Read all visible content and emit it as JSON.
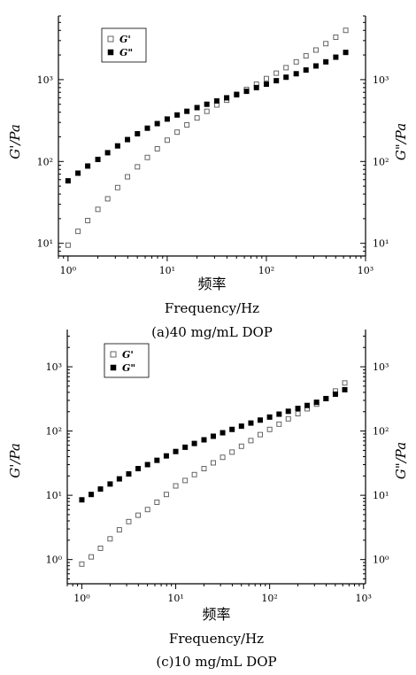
{
  "chart_data": [
    {
      "type": "scatter",
      "caption": "(a)40 mg/mL DOP",
      "xlabel_cn": "频率",
      "xlabel_en": "Frequency/Hz",
      "ylabel_left": "G'/Pa",
      "ylabel_right": "G\"/Pa",
      "x_scale": "log",
      "y_scale": "log",
      "xlim": [
        0.8,
        1000
      ],
      "ylim": [
        7,
        6000
      ],
      "x_tick_values": [
        1,
        10,
        100,
        1000
      ],
      "x_tick_labels": [
        "10⁰",
        "10¹",
        "10²",
        "10³"
      ],
      "y_tick_values": [
        10,
        100,
        1000
      ],
      "y_tick_labels": [
        "10¹",
        "10²",
        "10³"
      ],
      "legend": {
        "position": "top-left",
        "entries": [
          "G'",
          "G\""
        ]
      },
      "series": [
        {
          "name": "G'",
          "marker": "open-square",
          "points": [
            [
              1.0,
              9.5
            ],
            [
              1.26,
              14
            ],
            [
              1.58,
              19
            ],
            [
              2.0,
              26
            ],
            [
              2.51,
              35
            ],
            [
              3.16,
              48
            ],
            [
              3.98,
              65
            ],
            [
              5.01,
              86
            ],
            [
              6.31,
              112
            ],
            [
              7.94,
              143
            ],
            [
              10.0,
              182
            ],
            [
              12.6,
              228
            ],
            [
              15.8,
              280
            ],
            [
              20.0,
              340
            ],
            [
              25.1,
              410
            ],
            [
              31.6,
              490
            ],
            [
              39.8,
              560
            ],
            [
              50.1,
              650
            ],
            [
              63.1,
              760
            ],
            [
              79.4,
              880
            ],
            [
              100,
              1030
            ],
            [
              126,
              1200
            ],
            [
              158,
              1400
            ],
            [
              200,
              1650
            ],
            [
              251,
              1950
            ],
            [
              316,
              2300
            ],
            [
              398,
              2750
            ],
            [
              501,
              3300
            ],
            [
              631,
              4000
            ]
          ]
        },
        {
          "name": "G\"",
          "marker": "filled-square",
          "points": [
            [
              1.0,
              58
            ],
            [
              1.26,
              72
            ],
            [
              1.58,
              88
            ],
            [
              2.0,
              106
            ],
            [
              2.51,
              128
            ],
            [
              3.16,
              155
            ],
            [
              3.98,
              185
            ],
            [
              5.01,
              218
            ],
            [
              6.31,
              255
            ],
            [
              7.94,
              290
            ],
            [
              10.0,
              330
            ],
            [
              12.6,
              370
            ],
            [
              15.8,
              410
            ],
            [
              20.0,
              455
            ],
            [
              25.1,
              500
            ],
            [
              31.6,
              550
            ],
            [
              39.8,
              600
            ],
            [
              50.1,
              660
            ],
            [
              63.1,
              720
            ],
            [
              79.4,
              800
            ],
            [
              100,
              880
            ],
            [
              126,
              970
            ],
            [
              158,
              1070
            ],
            [
              200,
              1180
            ],
            [
              251,
              1310
            ],
            [
              316,
              1470
            ],
            [
              398,
              1650
            ],
            [
              501,
              1880
            ],
            [
              631,
              2150
            ]
          ]
        }
      ]
    },
    {
      "type": "scatter",
      "caption": "(c)10 mg/mL DOP",
      "xlabel_cn": "频率",
      "xlabel_en": "Frequency/Hz",
      "ylabel_left": "G'/Pa",
      "ylabel_right": "G\"/Pa",
      "x_scale": "log",
      "y_scale": "log",
      "xlim": [
        0.7,
        1050
      ],
      "ylim": [
        0.42,
        3800
      ],
      "x_tick_values": [
        1,
        10,
        100,
        1000
      ],
      "x_tick_labels": [
        "10⁰",
        "10¹",
        "10²",
        "10³"
      ],
      "y_tick_values": [
        1,
        10,
        100,
        1000
      ],
      "y_tick_labels": [
        "10⁰",
        "10¹",
        "10²",
        "10³"
      ],
      "legend": {
        "position": "top-left",
        "entries": [
          "G'",
          "G\""
        ]
      },
      "series": [
        {
          "name": "G'",
          "marker": "open-square",
          "points": [
            [
              1.0,
              0.85
            ],
            [
              1.26,
              1.1
            ],
            [
              1.58,
              1.5
            ],
            [
              2.0,
              2.1
            ],
            [
              2.51,
              2.9
            ],
            [
              3.16,
              3.9
            ],
            [
              3.98,
              4.9
            ],
            [
              5.01,
              6.0
            ],
            [
              6.31,
              7.8
            ],
            [
              7.94,
              10.3
            ],
            [
              10.0,
              14
            ],
            [
              12.6,
              17
            ],
            [
              15.8,
              21
            ],
            [
              20.0,
              26
            ],
            [
              25.1,
              32
            ],
            [
              31.6,
              39
            ],
            [
              39.8,
              47
            ],
            [
              50.1,
              58
            ],
            [
              63.1,
              71
            ],
            [
              79.4,
              88
            ],
            [
              100,
              106
            ],
            [
              126,
              128
            ],
            [
              158,
              155
            ],
            [
              200,
              186
            ],
            [
              251,
              222
            ],
            [
              316,
              262
            ],
            [
              398,
              320
            ],
            [
              501,
              420
            ],
            [
              631,
              560
            ]
          ]
        },
        {
          "name": "G\"",
          "marker": "filled-square",
          "points": [
            [
              1.0,
              8.5
            ],
            [
              1.26,
              10.3
            ],
            [
              1.58,
              12.5
            ],
            [
              2.0,
              15
            ],
            [
              2.51,
              18
            ],
            [
              3.16,
              21.5
            ],
            [
              3.98,
              26
            ],
            [
              5.01,
              30
            ],
            [
              6.31,
              35
            ],
            [
              7.94,
              41
            ],
            [
              10.0,
              48
            ],
            [
              12.6,
              56
            ],
            [
              15.8,
              64
            ],
            [
              20.0,
              73
            ],
            [
              25.1,
              83
            ],
            [
              31.6,
              94
            ],
            [
              39.8,
              106
            ],
            [
              50.1,
              119
            ],
            [
              63.1,
              133
            ],
            [
              79.4,
              148
            ],
            [
              100,
              165
            ],
            [
              126,
              183
            ],
            [
              158,
              203
            ],
            [
              200,
              225
            ],
            [
              251,
              250
            ],
            [
              316,
              280
            ],
            [
              398,
              320
            ],
            [
              501,
              375
            ],
            [
              631,
              440
            ]
          ]
        }
      ]
    }
  ]
}
